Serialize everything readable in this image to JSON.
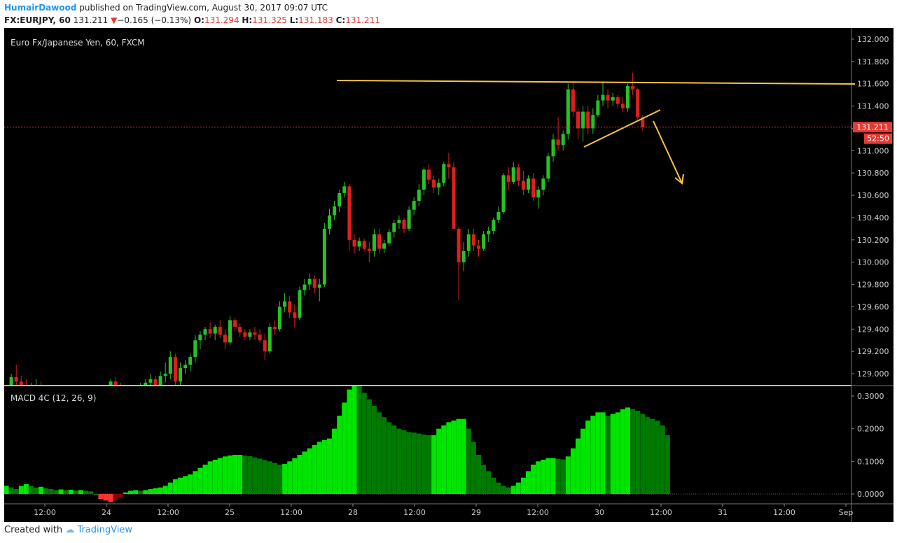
{
  "header": {
    "user": "HumairDawood",
    "published_text": "published on TradingView.com, August 30, 2017 09:07 UTC",
    "symbol": "FX:EURJPY, 60",
    "last": "131.211",
    "change": "−0.165 (−0.13%)",
    "o_label": "O:",
    "o_value": "131.294",
    "h_label": "H:",
    "h_value": "131.325",
    "l_label": "L:",
    "l_value": "131.183",
    "c_label": "C:",
    "c_value": "131.211"
  },
  "footer": {
    "created_with": "Created with",
    "brand": "TradingView"
  },
  "colors": {
    "background": "#000000",
    "up": "#26c226",
    "down": "#e01e1e",
    "trendline": "#f5c542",
    "price_line": "#e53935",
    "macd_bright": "#00e600",
    "macd_dark": "#007a00",
    "macd_neg_dark": "#8b0000",
    "macd_neg_bright": "#ff3333"
  },
  "chart_data": [
    {
      "type": "candlestick",
      "title": "Euro Fx/Japanese Yen, 60, FXCM",
      "ylim": [
        128.9,
        132.1
      ],
      "y_ticks": [
        "132.000",
        "131.800",
        "131.600",
        "131.400",
        "131.200",
        "131.000",
        "130.800",
        "130.600",
        "130.400",
        "130.200",
        "130.000",
        "129.800",
        "129.600",
        "129.400",
        "129.200",
        "129.000"
      ],
      "x_ticks": [
        "12:00",
        "24",
        "12:00",
        "25",
        "12:00",
        "28",
        "12:00",
        "29",
        "12:00",
        "30",
        "12:00",
        "31",
        "12:00",
        "Sep"
      ],
      "last_price_label": "131.211",
      "countdown_label": "52:50",
      "last_price": 131.211,
      "candles": [
        [
          128.85,
          128.9,
          128.8,
          128.88
        ],
        [
          128.88,
          129.0,
          128.85,
          128.97
        ],
        [
          128.97,
          129.08,
          128.9,
          128.93
        ],
        [
          128.93,
          128.98,
          128.85,
          128.9
        ],
        [
          128.9,
          128.95,
          128.82,
          128.86
        ],
        [
          128.86,
          128.92,
          128.8,
          128.88
        ],
        [
          128.88,
          128.95,
          128.85,
          128.9
        ],
        [
          128.9,
          128.93,
          128.84,
          128.87
        ],
        [
          128.87,
          128.9,
          128.8,
          128.84
        ],
        [
          128.84,
          128.88,
          128.78,
          128.82
        ],
        [
          128.82,
          128.87,
          128.78,
          128.85
        ],
        [
          128.85,
          128.88,
          128.8,
          128.83
        ],
        [
          128.83,
          128.86,
          128.78,
          128.8
        ],
        [
          128.8,
          128.84,
          128.75,
          128.82
        ],
        [
          128.82,
          128.87,
          128.78,
          128.84
        ],
        [
          128.84,
          128.87,
          128.8,
          128.83
        ],
        [
          128.83,
          128.85,
          128.78,
          128.8
        ],
        [
          128.8,
          128.85,
          128.77,
          128.82
        ],
        [
          128.82,
          128.86,
          128.79,
          128.81
        ],
        [
          128.81,
          128.84,
          128.76,
          128.79
        ],
        [
          128.79,
          128.83,
          128.74,
          128.8
        ],
        [
          128.8,
          128.95,
          128.78,
          128.93
        ],
        [
          128.93,
          128.97,
          128.85,
          128.88
        ],
        [
          128.88,
          128.92,
          128.82,
          128.86
        ],
        [
          128.86,
          128.9,
          128.8,
          128.84
        ],
        [
          128.84,
          128.88,
          128.78,
          128.82
        ],
        [
          128.82,
          128.87,
          128.78,
          128.85
        ],
        [
          128.85,
          128.92,
          128.82,
          128.9
        ],
        [
          128.9,
          128.95,
          128.85,
          128.92
        ],
        [
          128.92,
          129.0,
          128.88,
          128.95
        ],
        [
          128.95,
          128.98,
          128.85,
          128.88
        ],
        [
          128.88,
          129.02,
          128.86,
          128.98
        ],
        [
          128.98,
          129.1,
          128.92,
          129.0
        ],
        [
          129.0,
          129.2,
          128.95,
          129.15
        ],
        [
          129.15,
          129.18,
          128.9,
          128.93
        ],
        [
          128.93,
          129.1,
          128.9,
          129.05
        ],
        [
          129.05,
          129.12,
          129.0,
          129.08
        ],
        [
          129.08,
          129.18,
          129.02,
          129.15
        ],
        [
          129.15,
          129.35,
          129.1,
          129.3
        ],
        [
          129.3,
          129.38,
          129.22,
          129.35
        ],
        [
          129.35,
          129.42,
          129.3,
          129.4
        ],
        [
          129.4,
          129.46,
          129.32,
          129.36
        ],
        [
          129.36,
          129.44,
          129.3,
          129.42
        ],
        [
          129.42,
          129.48,
          129.32,
          129.35
        ],
        [
          129.35,
          129.4,
          129.22,
          129.28
        ],
        [
          129.28,
          129.52,
          129.26,
          129.48
        ],
        [
          129.48,
          129.5,
          129.38,
          129.42
        ],
        [
          129.42,
          129.45,
          129.33,
          129.37
        ],
        [
          129.37,
          129.4,
          129.3,
          129.33
        ],
        [
          129.33,
          129.4,
          129.3,
          129.37
        ],
        [
          129.37,
          129.42,
          129.3,
          129.35
        ],
        [
          129.35,
          129.4,
          129.28,
          129.3
        ],
        [
          129.3,
          129.36,
          129.12,
          129.2
        ],
        [
          129.2,
          129.45,
          129.18,
          129.42
        ],
        [
          129.42,
          129.48,
          129.35,
          129.4
        ],
        [
          129.4,
          129.65,
          129.38,
          129.6
        ],
        [
          129.6,
          129.72,
          129.55,
          129.65
        ],
        [
          129.65,
          129.7,
          129.5,
          129.55
        ],
        [
          129.55,
          129.62,
          129.42,
          129.5
        ],
        [
          129.5,
          129.78,
          129.48,
          129.75
        ],
        [
          129.75,
          129.85,
          129.7,
          129.8
        ],
        [
          129.8,
          129.9,
          129.75,
          129.85
        ],
        [
          129.85,
          129.88,
          129.72,
          129.77
        ],
        [
          129.77,
          129.85,
          129.65,
          129.8
        ],
        [
          129.8,
          130.35,
          129.78,
          130.3
        ],
        [
          130.3,
          130.48,
          130.25,
          130.42
        ],
        [
          130.42,
          130.55,
          130.38,
          130.5
        ],
        [
          130.5,
          130.65,
          130.45,
          130.62
        ],
        [
          130.62,
          130.72,
          130.58,
          130.68
        ],
        [
          130.68,
          130.7,
          130.1,
          130.2
        ],
        [
          130.2,
          130.25,
          130.08,
          130.14
        ],
        [
          130.14,
          130.22,
          130.1,
          130.19
        ],
        [
          130.19,
          130.21,
          130.1,
          130.12
        ],
        [
          130.12,
          130.18,
          130.0,
          130.1
        ],
        [
          130.1,
          130.3,
          130.05,
          130.25
        ],
        [
          130.25,
          130.3,
          130.08,
          130.12
        ],
        [
          130.12,
          130.2,
          130.08,
          130.17
        ],
        [
          130.17,
          130.3,
          130.15,
          130.27
        ],
        [
          130.27,
          130.38,
          130.22,
          130.35
        ],
        [
          130.35,
          130.42,
          130.3,
          130.38
        ],
        [
          130.38,
          130.4,
          130.26,
          130.3
        ],
        [
          130.3,
          130.5,
          130.28,
          130.47
        ],
        [
          130.47,
          130.58,
          130.42,
          130.55
        ],
        [
          130.55,
          130.7,
          130.5,
          130.65
        ],
        [
          130.65,
          130.85,
          130.6,
          130.83
        ],
        [
          130.83,
          130.88,
          130.7,
          130.74
        ],
        [
          130.74,
          130.78,
          130.62,
          130.67
        ],
        [
          130.67,
          130.75,
          130.6,
          130.71
        ],
        [
          130.71,
          130.9,
          130.68,
          130.88
        ],
        [
          130.88,
          130.98,
          130.75,
          130.85
        ],
        [
          130.85,
          130.9,
          130.3,
          130.3
        ],
        [
          130.3,
          130.32,
          129.66,
          130.0
        ],
        [
          130.0,
          130.18,
          129.92,
          130.1
        ],
        [
          130.1,
          130.3,
          130.05,
          130.25
        ],
        [
          130.25,
          130.3,
          130.1,
          130.15
        ],
        [
          130.15,
          130.2,
          130.05,
          130.12
        ],
        [
          130.12,
          130.28,
          130.1,
          130.25
        ],
        [
          130.25,
          130.32,
          130.18,
          130.28
        ],
        [
          130.28,
          130.4,
          130.25,
          130.38
        ],
        [
          130.38,
          130.5,
          130.35,
          130.45
        ],
        [
          130.45,
          130.8,
          130.43,
          130.78
        ],
        [
          130.78,
          130.85,
          130.65,
          130.72
        ],
        [
          130.72,
          130.9,
          130.7,
          130.85
        ],
        [
          130.85,
          130.88,
          130.68,
          130.73
        ],
        [
          130.73,
          130.82,
          130.6,
          130.65
        ],
        [
          130.65,
          130.78,
          130.62,
          130.75
        ],
        [
          130.75,
          130.8,
          130.55,
          130.58
        ],
        [
          130.58,
          130.68,
          130.48,
          130.65
        ],
        [
          130.65,
          130.78,
          130.6,
          130.75
        ],
        [
          130.75,
          130.98,
          130.72,
          130.95
        ],
        [
          130.95,
          131.15,
          130.9,
          131.1
        ],
        [
          131.1,
          131.3,
          131.0,
          131.05
        ],
        [
          131.05,
          131.18,
          131.0,
          131.15
        ],
        [
          131.15,
          131.6,
          131.1,
          131.55
        ],
        [
          131.55,
          131.62,
          131.3,
          131.35
        ],
        [
          131.35,
          131.38,
          131.1,
          131.2
        ],
        [
          131.2,
          131.4,
          131.08,
          131.35
        ],
        [
          131.35,
          131.4,
          131.15,
          131.2
        ],
        [
          131.2,
          131.38,
          131.15,
          131.32
        ],
        [
          131.32,
          131.5,
          131.3,
          131.45
        ],
        [
          131.45,
          131.62,
          131.4,
          131.5
        ],
        [
          131.5,
          131.55,
          131.38,
          131.45
        ],
        [
          131.45,
          131.52,
          131.4,
          131.48
        ],
        [
          131.48,
          131.5,
          131.38,
          131.42
        ],
        [
          131.42,
          131.48,
          131.35,
          131.38
        ],
        [
          131.38,
          131.6,
          131.35,
          131.58
        ],
        [
          131.58,
          131.7,
          131.5,
          131.55
        ],
        [
          131.55,
          131.56,
          131.28,
          131.3
        ],
        [
          131.3,
          131.32,
          131.18,
          131.21
        ]
      ]
    },
    {
      "type": "histogram",
      "title": "MACD 4C (12, 26, 9)",
      "ylim": [
        -0.03,
        0.33
      ],
      "y_ticks": [
        "0.3000",
        "0.2000",
        "0.1000",
        "0.0000"
      ],
      "values": [
        0.025,
        0.02,
        0.015,
        0.025,
        0.03,
        0.025,
        0.02,
        0.022,
        0.018,
        0.015,
        0.012,
        0.014,
        0.012,
        0.013,
        0.011,
        0.012,
        0.01,
        0.008,
        0.0,
        -0.015,
        -0.02,
        -0.025,
        -0.02,
        -0.01,
        0.005,
        0.01,
        0.012,
        0.01,
        0.012,
        0.015,
        0.018,
        0.02,
        0.025,
        0.035,
        0.045,
        0.05,
        0.055,
        0.06,
        0.07,
        0.08,
        0.09,
        0.1,
        0.105,
        0.11,
        0.115,
        0.118,
        0.12,
        0.12,
        0.118,
        0.116,
        0.112,
        0.108,
        0.104,
        0.1,
        0.095,
        0.09,
        0.092,
        0.1,
        0.11,
        0.12,
        0.13,
        0.14,
        0.15,
        0.16,
        0.165,
        0.17,
        0.2,
        0.24,
        0.28,
        0.32,
        0.34,
        0.33,
        0.31,
        0.29,
        0.27,
        0.25,
        0.235,
        0.22,
        0.21,
        0.2,
        0.195,
        0.19,
        0.188,
        0.185,
        0.182,
        0.18,
        0.18,
        0.2,
        0.21,
        0.22,
        0.225,
        0.23,
        0.23,
        0.2,
        0.16,
        0.12,
        0.09,
        0.07,
        0.05,
        0.035,
        0.025,
        0.02,
        0.025,
        0.035,
        0.05,
        0.07,
        0.09,
        0.1,
        0.105,
        0.11,
        0.11,
        0.108,
        0.106,
        0.115,
        0.14,
        0.17,
        0.2,
        0.225,
        0.24,
        0.25,
        0.25,
        0.24,
        0.245,
        0.25,
        0.26,
        0.265,
        0.26,
        0.255,
        0.245,
        0.235,
        0.23,
        0.225,
        0.21,
        0.18
      ]
    }
  ]
}
